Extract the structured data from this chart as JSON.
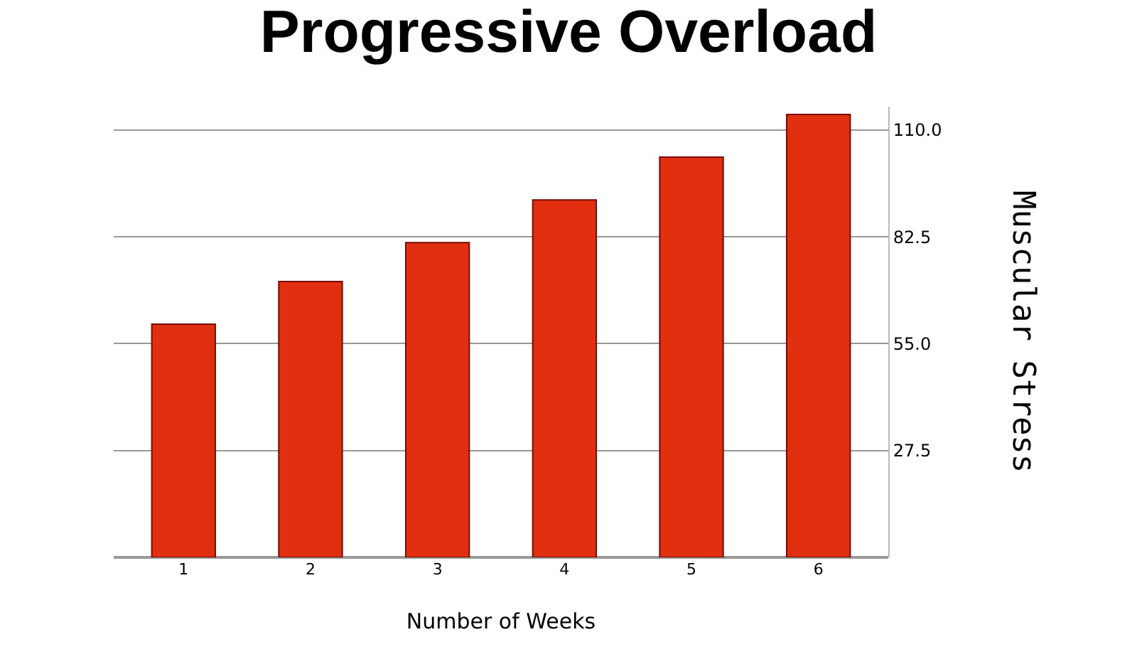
{
  "chart_data": {
    "type": "bar",
    "title": "Progressive Overload",
    "xlabel": "Number of Weeks",
    "ylabel": "Muscular Stress",
    "categories": [
      "1",
      "2",
      "3",
      "4",
      "5",
      "6"
    ],
    "values": [
      60,
      71,
      81,
      92,
      103,
      114
    ],
    "color": "#e0300f",
    "ylim": [
      0,
      116
    ],
    "yticks": [
      {
        "value": 27.5,
        "label": "27.5"
      },
      {
        "value": 55,
        "label": "55.0"
      },
      {
        "value": 82.5,
        "label": "82.5"
      },
      {
        "value": 110,
        "label": "110.0"
      }
    ],
    "grid": "y",
    "legend": false
  }
}
